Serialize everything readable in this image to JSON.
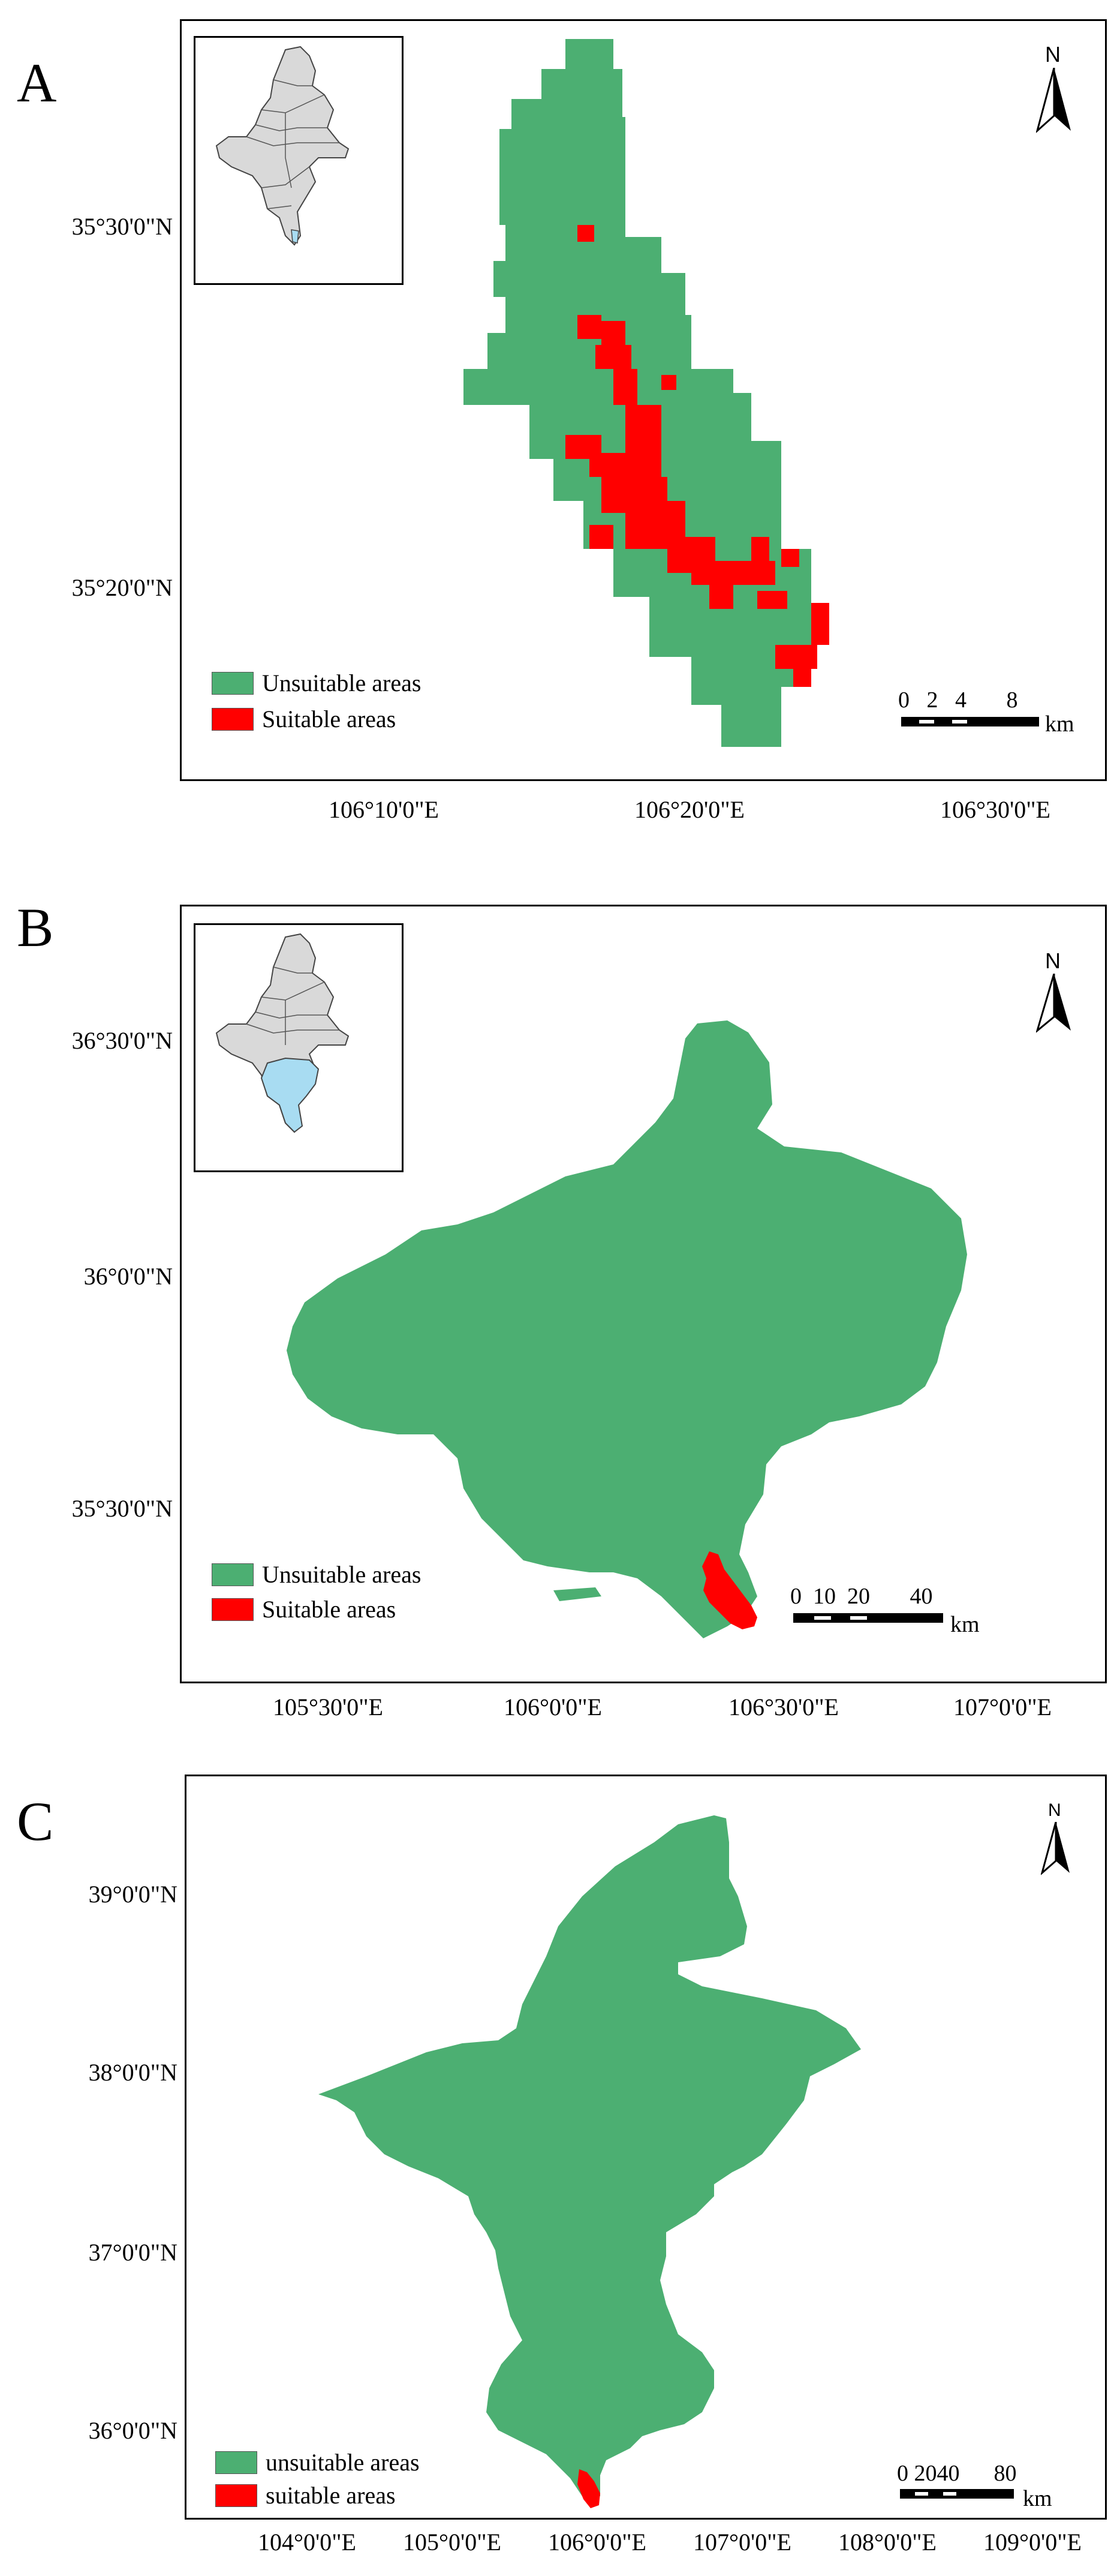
{
  "colors": {
    "unsuitable": "#4caf72",
    "suitable": "#ff0000",
    "inset_fill": "#d9d9d9",
    "inset_highlight": "#a8dcf2",
    "frame": "#000000"
  },
  "panels": [
    {
      "letter": "A",
      "lat_labels": [
        "35°30'0\"N",
        "35°20'0\"N"
      ],
      "lon_labels": [
        "106°10'0\"E",
        "106°20'0\"E",
        "106°30'0\"E"
      ],
      "legend": {
        "unsuitable": "Unsuitable areas",
        "suitable": "Suitable areas"
      },
      "scale": {
        "numbers": "0   2   4       8",
        "unit": "km"
      },
      "north": "N",
      "has_inset": true
    },
    {
      "letter": "B",
      "lat_labels": [
        "36°30'0\"N",
        "36°0'0\"N",
        "35°30'0\"N"
      ],
      "lon_labels": [
        "105°30'0\"E",
        "106°0'0\"E",
        "106°30'0\"E",
        "107°0'0\"E"
      ],
      "legend": {
        "unsuitable": "Unsuitable areas",
        "suitable": "Suitable areas"
      },
      "scale": {
        "numbers": "0  10  20       40",
        "unit": "km"
      },
      "north": "N",
      "has_inset": true
    },
    {
      "letter": "C",
      "lat_labels": [
        "39°0'0\"N",
        "38°0'0\"N",
        "37°0'0\"N",
        "36°0'0\"N"
      ],
      "lon_labels": [
        "104°0'0\"E",
        "105°0'0\"E",
        "106°0'0\"E",
        "107°0'0\"E",
        "108°0'0\"E",
        "109°0'0\"E"
      ],
      "legend": {
        "unsuitable": "unsuitable areas",
        "suitable": "suitable areas"
      },
      "scale": {
        "numbers": "0 2040      80",
        "unit": "km"
      },
      "north": "N",
      "has_inset": false
    }
  ]
}
